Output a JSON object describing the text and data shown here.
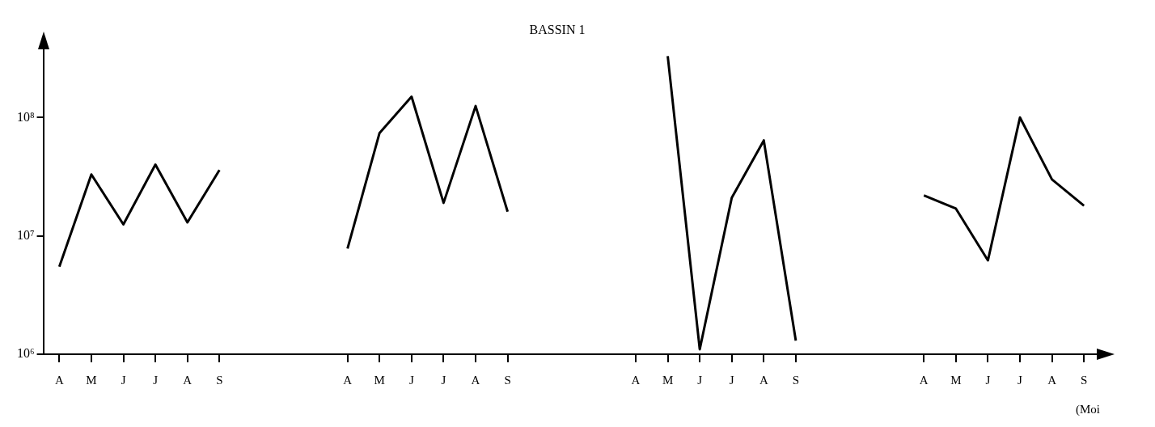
{
  "chart_data": {
    "type": "line",
    "title": "BASSIN 1",
    "xlabel": "(Moi",
    "categories": [
      "A",
      "M",
      "J",
      "J",
      "A",
      "S",
      null,
      null,
      null,
      "A",
      "M",
      "J",
      "J",
      "A",
      "S",
      null,
      null,
      null,
      "A",
      "M",
      "J",
      "J",
      "A",
      "S",
      null,
      null,
      null,
      "A",
      "M",
      "J",
      "J",
      "A",
      "S"
    ],
    "series": [
      {
        "color": "#000000",
        "values": [
          5500000,
          33000000,
          12500000,
          40000000,
          13000000,
          36000000,
          null,
          null,
          null,
          7800000,
          74000000,
          150000000,
          19000000,
          125000000,
          16000000,
          null,
          null,
          null,
          null,
          330000000,
          1100000,
          21000000,
          64000000,
          1300000,
          null,
          null,
          null,
          22000000,
          17000000,
          6200000,
          100000000,
          30000000,
          18000000
        ]
      }
    ],
    "log": "y",
    "ylim": [
      1000000,
      400000000
    ],
    "yticks": [
      {
        "value": 1000000,
        "label": "10⁶"
      },
      {
        "value": 10000000,
        "label": "10⁷"
      },
      {
        "value": 100000000,
        "label": "10⁸"
      }
    ],
    "marker": "none",
    "legend": false
  }
}
